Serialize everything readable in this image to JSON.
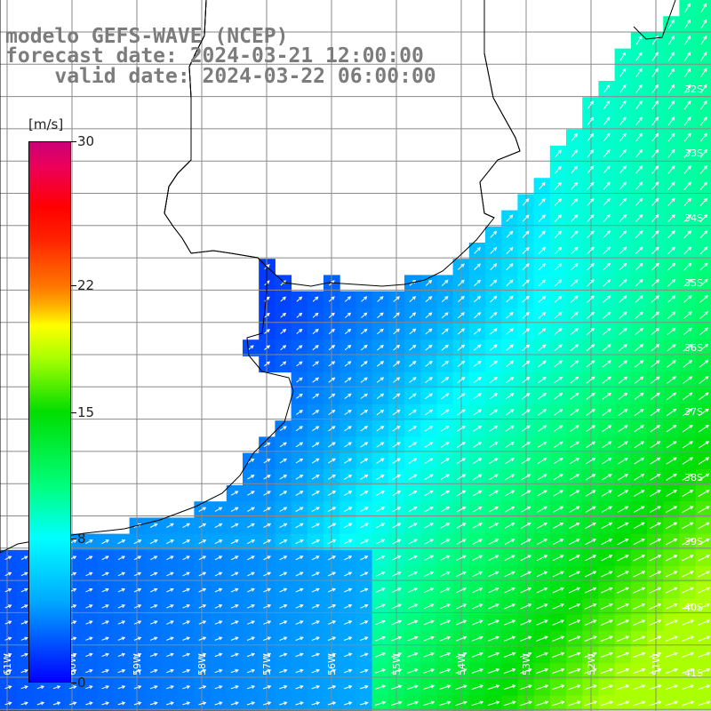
{
  "title": {
    "line1": "modelo GEFS-WAVE (NCEP)",
    "line2": "forecast date: 2024-03-21 12:00:00",
    "line3": "    valid date: 2024-03-22 06:00:00"
  },
  "colorbar": {
    "unit": "[m/s]",
    "min": 0,
    "max": 30,
    "ticks": [
      {
        "label": "30",
        "value": 30
      },
      {
        "label": "22",
        "value": 22
      },
      {
        "label": "15",
        "value": 15
      },
      {
        "label": "8",
        "value": 8
      },
      {
        "label": "0",
        "value": 0
      }
    ]
  },
  "map": {
    "lat_labels": [
      "32S",
      "33S",
      "34S",
      "35S",
      "36S",
      "37S",
      "38S",
      "39S",
      "40S",
      "41S"
    ],
    "lon_labels": [
      "61W",
      "60W",
      "59W",
      "58W",
      "57W",
      "56W",
      "55W",
      "54W",
      "53W",
      "52W",
      "51W"
    ],
    "colors": {
      "land": "#ffffff",
      "grid": "#8a8a8a",
      "coast": "#000000",
      "arrows": "#ffffff"
    }
  }
}
